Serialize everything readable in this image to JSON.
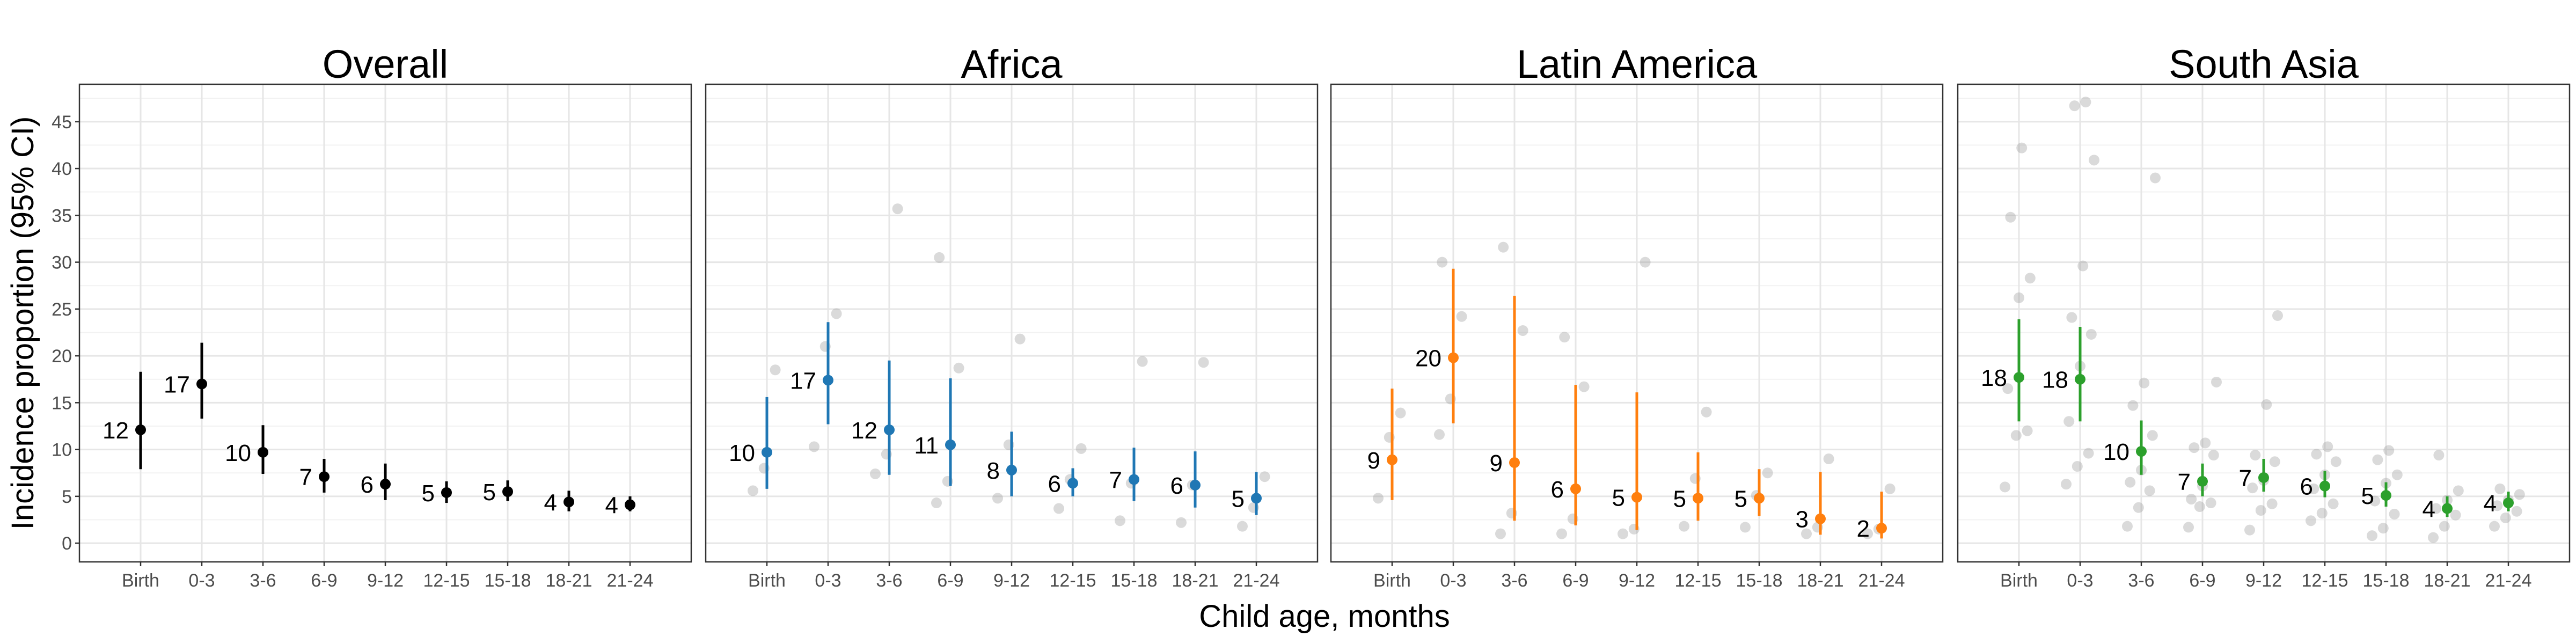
{
  "chart_data": {
    "type": "scatter",
    "xlabel": "Child age, months",
    "ylabel": "Incidence proportion (95% CI)",
    "ylim": [
      -2,
      49
    ],
    "yticks": [
      0,
      5,
      10,
      15,
      20,
      25,
      30,
      35,
      40,
      45
    ],
    "categories": [
      "Birth",
      "0-3",
      "3-6",
      "6-9",
      "9-12",
      "12-15",
      "15-18",
      "18-21",
      "21-24"
    ],
    "grid": true,
    "legend": "none",
    "panels": [
      {
        "title": "Overall",
        "color": "#000000",
        "points": [
          {
            "x": "Birth",
            "y": 12.1,
            "lo": 7.9,
            "hi": 18.3,
            "label": "12"
          },
          {
            "x": "0-3",
            "y": 17.0,
            "lo": 13.3,
            "hi": 21.4,
            "label": "17"
          },
          {
            "x": "3-6",
            "y": 9.7,
            "lo": 7.4,
            "hi": 12.6,
            "label": "10"
          },
          {
            "x": "6-9",
            "y": 7.1,
            "lo": 5.4,
            "hi": 9.0,
            "label": "7"
          },
          {
            "x": "9-12",
            "y": 6.3,
            "lo": 4.6,
            "hi": 8.5,
            "label": "6"
          },
          {
            "x": "12-15",
            "y": 5.4,
            "lo": 4.3,
            "hi": 6.6,
            "label": "5"
          },
          {
            "x": "15-18",
            "y": 5.5,
            "lo": 4.5,
            "hi": 6.7,
            "label": "5"
          },
          {
            "x": "18-21",
            "y": 4.4,
            "lo": 3.4,
            "hi": 5.6,
            "label": "4"
          },
          {
            "x": "21-24",
            "y": 4.1,
            "lo": 3.4,
            "hi": 5.0,
            "label": "4"
          }
        ],
        "cohort_points": []
      },
      {
        "title": "Africa",
        "color": "#1f77b4",
        "points": [
          {
            "x": "Birth",
            "y": 9.7,
            "lo": 5.8,
            "hi": 15.6,
            "label": "10"
          },
          {
            "x": "0-3",
            "y": 17.4,
            "lo": 12.7,
            "hi": 23.6,
            "label": "17"
          },
          {
            "x": "3-6",
            "y": 12.1,
            "lo": 7.3,
            "hi": 19.5,
            "label": "12"
          },
          {
            "x": "6-9",
            "y": 10.5,
            "lo": 6.1,
            "hi": 17.6,
            "label": "11"
          },
          {
            "x": "9-12",
            "y": 7.8,
            "lo": 5.0,
            "hi": 11.9,
            "label": "8"
          },
          {
            "x": "12-15",
            "y": 6.4,
            "lo": 5.0,
            "hi": 8.0,
            "label": "6"
          },
          {
            "x": "15-18",
            "y": 6.8,
            "lo": 4.5,
            "hi": 10.2,
            "label": "7"
          },
          {
            "x": "18-21",
            "y": 6.2,
            "lo": 3.8,
            "hi": 9.8,
            "label": "6"
          },
          {
            "x": "21-24",
            "y": 4.8,
            "lo": 3.0,
            "hi": 7.6,
            "label": "5"
          }
        ],
        "cohort_points": [
          {
            "x": "Birth",
            "ys": [
              5.6,
              8.0,
              18.5
            ]
          },
          {
            "x": "0-3",
            "ys": [
              10.3,
              21.0,
              24.5
            ]
          },
          {
            "x": "3-6",
            "ys": [
              7.4,
              9.5,
              35.7
            ]
          },
          {
            "x": "6-9",
            "ys": [
              4.3,
              6.6,
              18.7,
              30.5
            ]
          },
          {
            "x": "9-12",
            "ys": [
              4.8,
              10.5,
              21.8
            ]
          },
          {
            "x": "12-15",
            "ys": [
              3.7,
              6.8,
              10.1
            ]
          },
          {
            "x": "15-18",
            "ys": [
              2.4,
              6.4,
              19.4
            ]
          },
          {
            "x": "18-21",
            "ys": [
              2.2,
              6.2,
              19.3
            ]
          },
          {
            "x": "21-24",
            "ys": [
              1.8,
              3.8,
              7.1
            ]
          }
        ]
      },
      {
        "title": "Latin America",
        "color": "#ff7f0e",
        "points": [
          {
            "x": "Birth",
            "y": 8.9,
            "lo": 4.6,
            "hi": 16.5,
            "label": "9"
          },
          {
            "x": "0-3",
            "y": 19.8,
            "lo": 12.8,
            "hi": 29.3,
            "label": "20"
          },
          {
            "x": "3-6",
            "y": 8.6,
            "lo": 2.4,
            "hi": 26.4,
            "label": "9"
          },
          {
            "x": "6-9",
            "y": 5.8,
            "lo": 1.9,
            "hi": 16.9,
            "label": "6"
          },
          {
            "x": "9-12",
            "y": 4.9,
            "lo": 1.4,
            "hi": 16.1,
            "label": "5"
          },
          {
            "x": "12-15",
            "y": 4.8,
            "lo": 2.4,
            "hi": 9.7,
            "label": "5"
          },
          {
            "x": "15-18",
            "y": 4.8,
            "lo": 2.9,
            "hi": 7.9,
            "label": "5"
          },
          {
            "x": "18-21",
            "y": 2.6,
            "lo": 0.9,
            "hi": 7.6,
            "label": "3"
          },
          {
            "x": "21-24",
            "y": 1.6,
            "lo": 0.5,
            "hi": 5.5,
            "label": "2"
          }
        ],
        "cohort_points": [
          {
            "x": "Birth",
            "ys": [
              4.8,
              11.3,
              13.9
            ]
          },
          {
            "x": "0-3",
            "ys": [
              11.6,
              15.4,
              24.2,
              30.0
            ]
          },
          {
            "x": "3-6",
            "ys": [
              1.0,
              3.2,
              22.7,
              31.6
            ]
          },
          {
            "x": "6-9",
            "ys": [
              1.0,
              2.6,
              16.7,
              22.0
            ]
          },
          {
            "x": "9-12",
            "ys": [
              1.0,
              1.5,
              30.0
            ]
          },
          {
            "x": "12-15",
            "ys": [
              1.8,
              6.9,
              14.0
            ]
          },
          {
            "x": "15-18",
            "ys": [
              1.7,
              5.1,
              7.5
            ]
          },
          {
            "x": "18-21",
            "ys": [
              1.0,
              1.7,
              9.0
            ]
          },
          {
            "x": "21-24",
            "ys": [
              1.0,
              1.5,
              5.8
            ]
          }
        ]
      },
      {
        "title": "South Asia",
        "color": "#2ca02c",
        "points": [
          {
            "x": "Birth",
            "y": 17.7,
            "lo": 13.0,
            "hi": 23.9,
            "label": "18"
          },
          {
            "x": "0-3",
            "y": 17.5,
            "lo": 13.0,
            "hi": 23.1,
            "label": "18"
          },
          {
            "x": "3-6",
            "y": 9.8,
            "lo": 7.3,
            "hi": 13.1,
            "label": "10"
          },
          {
            "x": "6-9",
            "y": 6.6,
            "lo": 5.0,
            "hi": 8.5,
            "label": "7"
          },
          {
            "x": "9-12",
            "y": 7.0,
            "lo": 5.5,
            "hi": 9.0,
            "label": "7"
          },
          {
            "x": "12-15",
            "y": 6.1,
            "lo": 4.9,
            "hi": 7.7,
            "label": "6"
          },
          {
            "x": "15-18",
            "y": 5.1,
            "lo": 3.9,
            "hi": 6.5,
            "label": "5"
          },
          {
            "x": "18-21",
            "y": 3.7,
            "lo": 2.8,
            "hi": 5.0,
            "label": "4"
          },
          {
            "x": "21-24",
            "y": 4.3,
            "lo": 3.4,
            "hi": 5.5,
            "label": "4"
          }
        ],
        "cohort_points": [
          {
            "x": "Birth",
            "ys": [
              6.0,
              11.5,
              12.0,
              16.5,
              26.2,
              28.3,
              34.8,
              42.2
            ]
          },
          {
            "x": "0-3",
            "ys": [
              6.3,
              8.2,
              9.6,
              13.0,
              18.9,
              22.3,
              24.1,
              29.6,
              40.9,
              46.7,
              47.1
            ]
          },
          {
            "x": "3-6",
            "ys": [
              1.8,
              3.8,
              5.6,
              6.5,
              7.8,
              11.5,
              14.7,
              17.1,
              39.0
            ]
          },
          {
            "x": "6-9",
            "ys": [
              1.7,
              3.9,
              4.3,
              4.7,
              6.1,
              9.4,
              10.2,
              10.7,
              17.2
            ]
          },
          {
            "x": "9-12",
            "ys": [
              1.4,
              3.5,
              4.2,
              5.9,
              6.7,
              8.7,
              9.4,
              14.8,
              24.3
            ]
          },
          {
            "x": "12-15",
            "ys": [
              2.4,
              3.2,
              4.2,
              5.8,
              7.3,
              8.7,
              9.5,
              10.3
            ]
          },
          {
            "x": "15-18",
            "ys": [
              0.8,
              1.6,
              3.1,
              4.5,
              6.4,
              7.3,
              8.9,
              9.9
            ]
          },
          {
            "x": "18-21",
            "ys": [
              0.6,
              1.8,
              3.0,
              3.7,
              4.6,
              5.6,
              9.4
            ]
          },
          {
            "x": "21-24",
            "ys": [
              1.8,
              2.7,
              3.4,
              4.0,
              4.6,
              5.2,
              5.8
            ]
          }
        ]
      }
    ]
  }
}
